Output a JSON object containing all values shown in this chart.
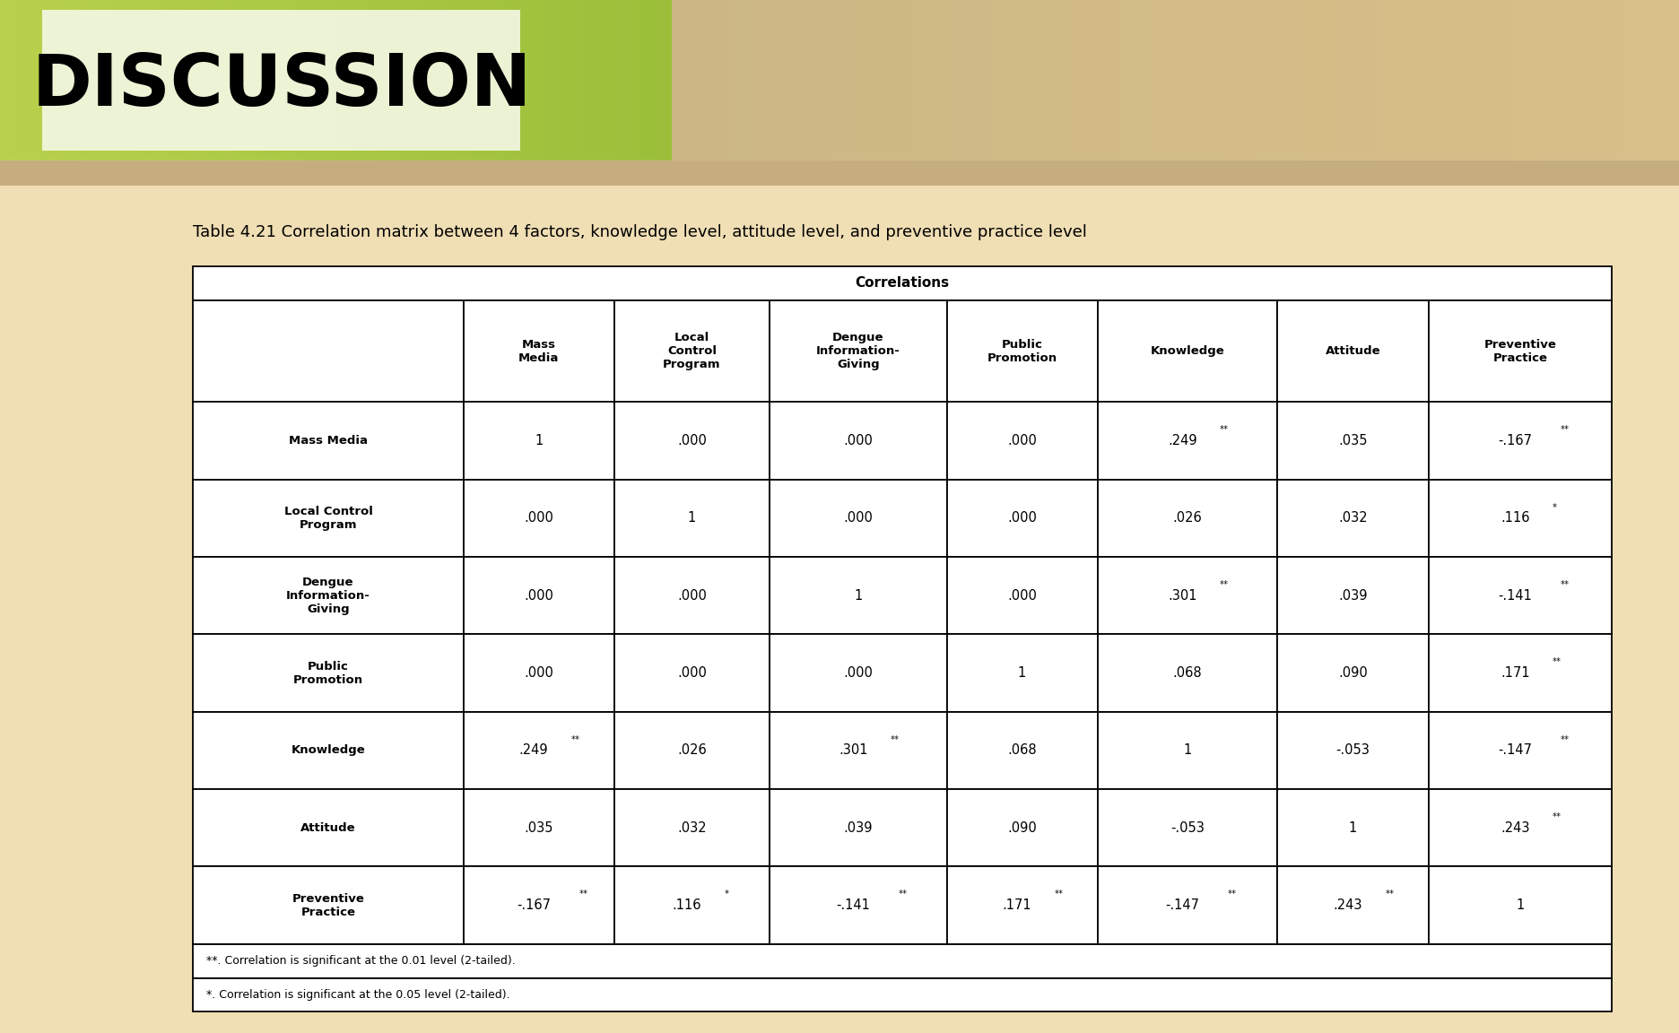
{
  "title": "Table 4.21 Correlation matrix between 4 factors, knowledge level, attitude level, and preventive practice level",
  "discussion_text": "DISCUSSION",
  "correlations_label": "Correlations",
  "col_headers": [
    "",
    "Mass\nMedia",
    "Local\nControl\nProgram",
    "Dengue\nInformation-\nGiving",
    "Public\nPromotion",
    "Knowledge",
    "Attitude",
    "Preventive\nPractice"
  ],
  "row_headers": [
    "Mass Media",
    "Local Control\nProgram",
    "Dengue\nInformation-\nGiving",
    "Public\nPromotion",
    "Knowledge",
    "Attitude",
    "Preventive\nPractice"
  ],
  "table_data": [
    [
      "1",
      ".000",
      ".000",
      ".000",
      ".249**",
      ".035",
      "-.167**"
    ],
    [
      ".000",
      "1",
      ".000",
      ".000",
      ".026",
      ".032",
      ".116*"
    ],
    [
      ".000",
      ".000",
      "1",
      ".000",
      ".301**",
      ".039",
      "-.141**"
    ],
    [
      ".000",
      ".000",
      ".000",
      "1",
      ".068",
      ".090",
      ".171**"
    ],
    [
      ".249**",
      ".026",
      ".301**",
      ".068",
      "1",
      "-.053",
      "-.147**"
    ],
    [
      ".035",
      ".032",
      ".039",
      ".090",
      "-.053",
      "1",
      ".243**"
    ],
    [
      "-.167**",
      ".116*",
      "-.141**",
      ".171**",
      "-.147**",
      ".243**",
      "1"
    ]
  ],
  "footnote1": "**. Correlation is significant at the 0.01 level (2-tailed).",
  "footnote2": "*. Correlation is significant at the 0.05 level (2-tailed).",
  "fig_bg": "#f0deb4",
  "table_bg": "#ffffff",
  "banner_green_left": "#a8c84a",
  "banner_green_mid": "#7aaa30",
  "banner_tan": "#c8a878",
  "disc_box_color": "#f0f8d8",
  "text_color": "#000000"
}
